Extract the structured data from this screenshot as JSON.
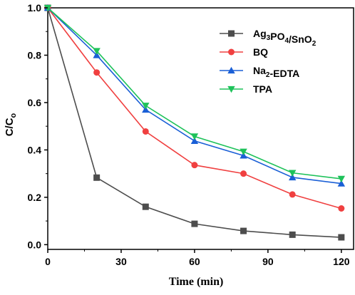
{
  "chart_data": {
    "type": "line",
    "xlabel": "Time (min)",
    "ylabel": "C/C",
    "ylabel_subscript": "o",
    "xlim": [
      0,
      125
    ],
    "ylim": [
      -0.02,
      1.0
    ],
    "xticks": [
      0,
      30,
      60,
      90,
      120
    ],
    "xtick_labels": [
      "0",
      "30",
      "60",
      "90",
      "120"
    ],
    "yticks": [
      0.0,
      0.2,
      0.4,
      0.6,
      0.8,
      1.0
    ],
    "ytick_labels": [
      "0.0",
      "0.2",
      "0.4",
      "0.6",
      "0.8",
      "1.0"
    ],
    "grid": false,
    "legend_position": "top-right",
    "x": [
      0,
      20,
      40,
      60,
      80,
      100,
      120
    ],
    "series": [
      {
        "name": "Ag3PO4/SnO2",
        "legend": [
          {
            "t": "Ag"
          },
          {
            "t": "3",
            "sub": true
          },
          {
            "t": "PO"
          },
          {
            "t": "4",
            "sub": true
          },
          {
            "t": "/SnO"
          },
          {
            "t": "2",
            "sub": true
          }
        ],
        "color": "#4d4d4d",
        "marker": "square",
        "values": [
          1.0,
          0.283,
          0.16,
          0.088,
          0.058,
          0.042,
          0.031
        ]
      },
      {
        "name": "BQ",
        "legend": [
          {
            "t": "BQ"
          }
        ],
        "color": "#f04040",
        "marker": "circle",
        "values": [
          1.0,
          0.727,
          0.478,
          0.336,
          0.3,
          0.212,
          0.153
        ]
      },
      {
        "name": "Na2-EDTA",
        "legend": [
          {
            "t": "Na"
          },
          {
            "t": "2",
            "sub": true
          },
          {
            "t": "-EDTA"
          }
        ],
        "color": "#1a5fd6",
        "marker": "triangle-up",
        "values": [
          1.0,
          0.8,
          0.57,
          0.438,
          0.376,
          0.284,
          0.258
        ]
      },
      {
        "name": "TPA",
        "legend": [
          {
            "t": "TPA"
          }
        ],
        "color": "#1ec25a",
        "marker": "triangle-down",
        "values": [
          1.0,
          0.818,
          0.587,
          0.457,
          0.393,
          0.303,
          0.278
        ]
      }
    ]
  }
}
